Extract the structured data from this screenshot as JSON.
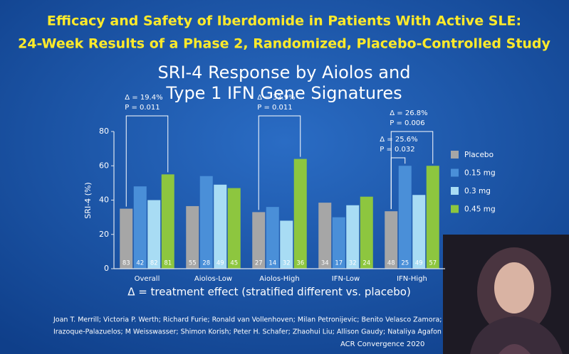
{
  "header": {
    "title_lines": [
      "Efficacy and Safety of Iberdomide in Patients With Active SLE:",
      "24-Week Results of a Phase 2, Randomized, Placebo-Controlled Study"
    ]
  },
  "chart_data": {
    "type": "bar",
    "title_lines": [
      "SRI-4 Response by Aiolos and",
      "Type 1 IFN Gene Signatures"
    ],
    "y_label": "SRI-4 (%)",
    "x_note": "Δ = treatment effect (stratified different vs. placebo)",
    "categories": [
      "Overall",
      "Aiolos-Low",
      "Aiolos-High",
      "IFN-Low",
      "IFN-High"
    ],
    "ylim": [
      0,
      80
    ],
    "yticks": [
      0,
      20,
      40,
      60,
      80
    ],
    "grid": false,
    "legend": "right",
    "series": [
      {
        "name": "Placebo",
        "color": "#a6a6a6",
        "values": [
          35,
          36.5,
          33,
          38.5,
          33.5
        ],
        "n": [
          "83",
          "55",
          "27",
          "34",
          "48"
        ]
      },
      {
        "name": "0.15 mg",
        "color": "#4a8fd8",
        "values": [
          48,
          54,
          36,
          30,
          60
        ],
        "n": [
          "42",
          "28",
          "14",
          "17",
          "25"
        ]
      },
      {
        "name": "0.3 mg",
        "color": "#a8dcf4",
        "values": [
          40,
          49,
          28,
          37,
          43
        ],
        "n": [
          "82",
          "49",
          "32",
          "32",
          "49"
        ]
      },
      {
        "name": "0.45 mg",
        "color": "#8dc63f",
        "values": [
          55,
          47,
          64,
          42,
          60
        ],
        "n": [
          "81",
          "45",
          "36",
          "24",
          "57"
        ]
      }
    ],
    "annotations": [
      {
        "delta": "Δ = 19.4%",
        "p": "P = 0.011"
      },
      {
        "delta": "Δ = 32.9%",
        "p": "P = 0.011"
      },
      {
        "delta": "Δ = 25.6%",
        "p": "P = 0.032"
      },
      {
        "delta": "Δ = 26.8%",
        "p": "P = 0.006"
      }
    ]
  },
  "footer": {
    "authors": [
      "Joan T. Merrill;  Victoria P. Werth;  Richard Furie;  Ronald van Vollenhoven;  Milan Petronijevic;  Benito Velasco Zamora;  Mar",
      "Irazoque-Palazuelos;  M Weisswasser;  Shimon Korish;  Peter H. Schafer;  Zhaohui Liu;  Allison Gaudy;  Nataliya Agafon"
    ],
    "conference": "ACR Convergence 2020"
  }
}
